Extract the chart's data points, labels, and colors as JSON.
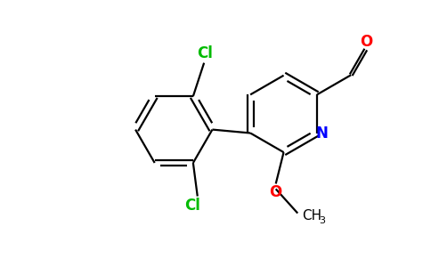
{
  "bg_color": "#ffffff",
  "bond_color": "#000000",
  "cl_color": "#00bb00",
  "n_color": "#0000ff",
  "o_color": "#ff0000",
  "line_width": 1.6,
  "figsize": [
    4.84,
    3.0
  ],
  "dpi": 100,
  "xlim": [
    0,
    9.68
  ],
  "ylim": [
    0,
    6.0
  ]
}
